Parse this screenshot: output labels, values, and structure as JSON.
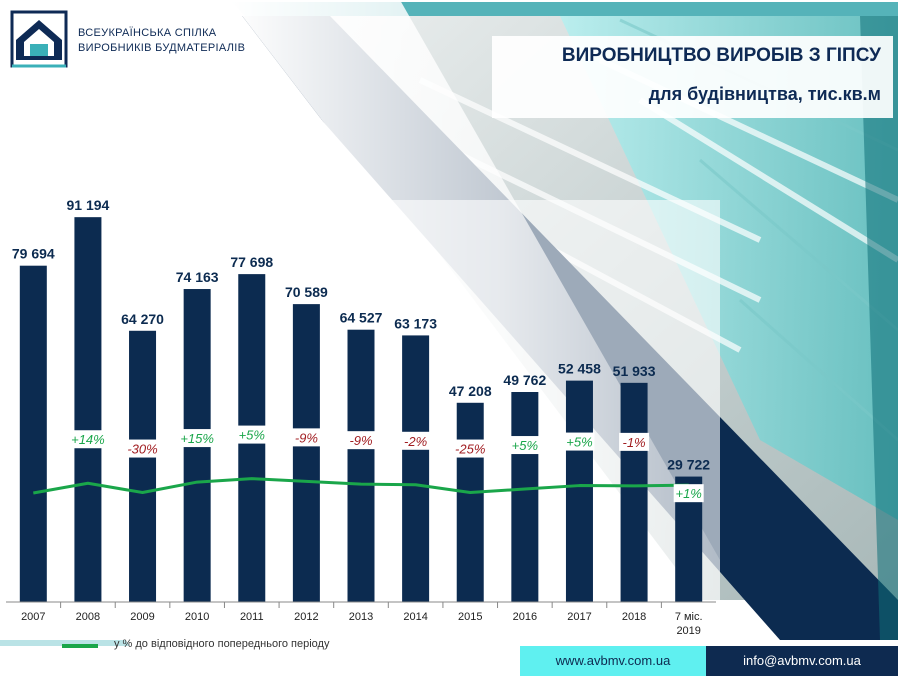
{
  "header": {
    "org_line1": "ВСЕУКРАЇНСЬКА СПІЛКА",
    "org_line2": "ВИРОБНИКІВ БУДМАТЕРІАЛІВ",
    "title": "ВИРОБНИЦТВО ВИРОБІВ З ГІПСУ",
    "subtitle": "для будівництва, тис.кв.м"
  },
  "legend": {
    "label": "у % до відповідного попереднього періоду"
  },
  "footer": {
    "website": "www.avbmv.com.ua",
    "email": "info@avbmv.com.ua"
  },
  "colors": {
    "bar": "#0c2b50",
    "line": "#1aa64a",
    "positive_label": "#1aa64a",
    "negative_label": "#a11d21",
    "accent_cyan": "#5ff0f0",
    "dark_navy": "#0e2a50"
  },
  "chart_data": {
    "type": "bar",
    "categories": [
      "2007",
      "2008",
      "2009",
      "2010",
      "2011",
      "2012",
      "2013",
      "2014",
      "2015",
      "2016",
      "2017",
      "2018",
      "7 міс.\n2019"
    ],
    "values": [
      79694,
      91194,
      64270,
      74163,
      77698,
      70589,
      64527,
      63173,
      47208,
      49762,
      52458,
      51933,
      29722
    ],
    "value_labels": [
      "79 694",
      "91 194",
      "64 270",
      "74 163",
      "77 698",
      "70 589",
      "64 527",
      "63 173",
      "47 208",
      "49 762",
      "52 458",
      "51 933",
      "29 722"
    ],
    "ylim": [
      0,
      100000
    ],
    "grid": false,
    "legend_position": "bottom-left",
    "series": [
      {
        "name": "у % до відповідного попереднього періоду",
        "type": "line",
        "labels": [
          "",
          "+14%",
          "-30%",
          "+15%",
          "+5%",
          "-9%",
          "-9%",
          "-2%",
          "-25%",
          "+5%",
          "+5%",
          "-1%",
          "+1%"
        ],
        "values": [
          null,
          14,
          -30,
          15,
          5,
          -9,
          -9,
          -2,
          -25,
          5,
          5,
          -1,
          1
        ]
      }
    ]
  }
}
